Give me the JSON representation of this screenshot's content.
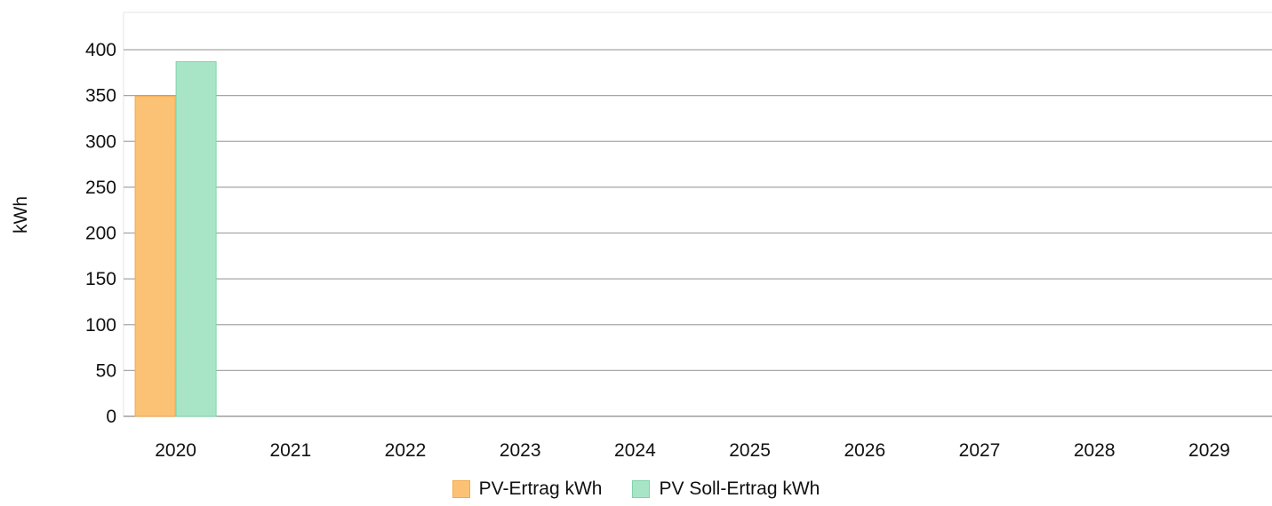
{
  "chart_data": {
    "type": "bar",
    "categories": [
      "2020",
      "2021",
      "2022",
      "2023",
      "2024",
      "2025",
      "2026",
      "2027",
      "2028",
      "2029"
    ],
    "series": [
      {
        "name": "PV-Ertrag kWh",
        "color": "#fbc275",
        "border": "#f5a94a",
        "values": [
          349,
          null,
          null,
          null,
          null,
          null,
          null,
          null,
          null,
          null
        ]
      },
      {
        "name": "PV Soll-Ertrag kWh",
        "color": "#a8e5c6",
        "border": "#7fd3aa",
        "values": [
          387,
          null,
          null,
          null,
          null,
          null,
          null,
          null,
          null,
          null
        ]
      }
    ],
    "ylabel": "kWh",
    "ylim": [
      0,
      400
    ],
    "yticks": [
      0,
      50,
      100,
      150,
      200,
      250,
      300,
      350,
      400
    ],
    "grid": true,
    "legend_position": "bottom-center"
  }
}
